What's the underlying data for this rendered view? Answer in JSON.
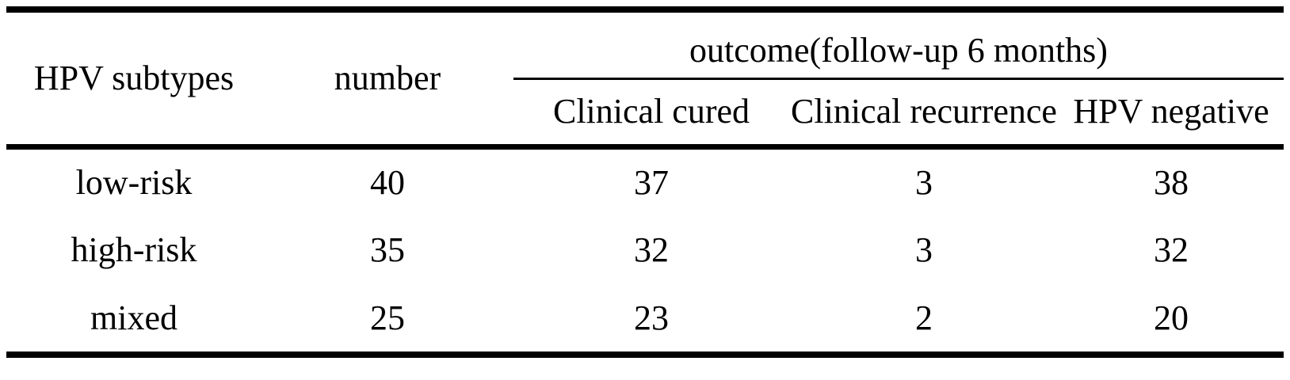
{
  "colors": {
    "text": "#000000",
    "background": "#ffffff",
    "rule": "#000000"
  },
  "table": {
    "header": {
      "hpv_subtypes": "HPV subtypes",
      "number": "number",
      "outcome_group": "outcome(follow-up 6 months)",
      "outcome_columns": [
        "Clinical cured",
        "Clinical recurrence",
        "HPV negative"
      ]
    },
    "rows": [
      [
        "low-risk",
        "40",
        "37",
        "3",
        "38"
      ],
      [
        "high-risk",
        "35",
        "32",
        "3",
        "32"
      ],
      [
        "mixed",
        "25",
        "23",
        "2",
        "20"
      ]
    ]
  },
  "chart_data": {
    "type": "table",
    "columns": [
      "HPV subtypes",
      "number",
      "Clinical cured",
      "Clinical recurrence",
      "HPV negative"
    ],
    "column_groups": [
      {
        "label": "outcome(follow-up 6 months)",
        "columns": [
          "Clinical cured",
          "Clinical recurrence",
          "HPV negative"
        ]
      }
    ],
    "rows": [
      {
        "HPV subtypes": "low-risk",
        "number": 40,
        "Clinical cured": 37,
        "Clinical recurrence": 3,
        "HPV negative": 38
      },
      {
        "HPV subtypes": "high-risk",
        "number": 35,
        "Clinical cured": 32,
        "Clinical recurrence": 3,
        "HPV negative": 32
      },
      {
        "HPV subtypes": "mixed",
        "number": 25,
        "Clinical cured": 23,
        "Clinical recurrence": 2,
        "HPV negative": 20
      }
    ]
  }
}
